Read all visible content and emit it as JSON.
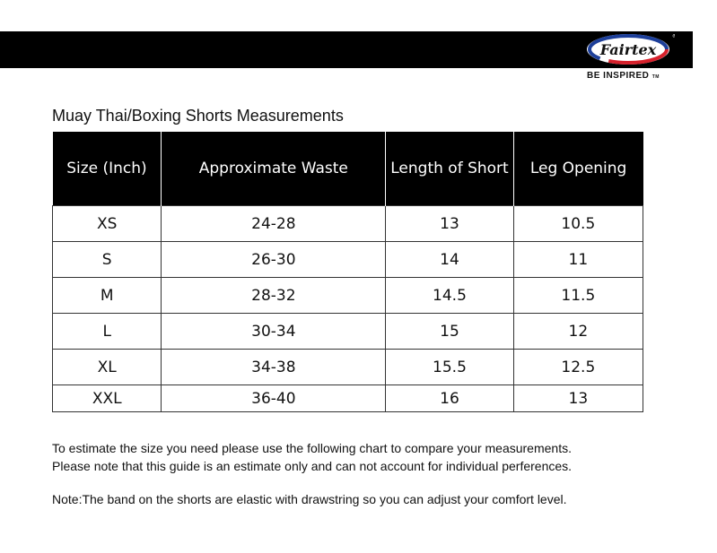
{
  "brand": {
    "logo_text": "Fairtex",
    "tagline": "BE INSPIRED",
    "trademark": "TM",
    "colors": {
      "red": "#d6202b",
      "blue": "#1d3f9a",
      "bar": "#000000"
    }
  },
  "title": "Muay Thai/Boxing Shorts Measurements",
  "table": {
    "headers": [
      "Size (Inch)",
      "Approximate Waste",
      "Length of Short",
      "Leg Opening"
    ],
    "rows": [
      [
        "XS",
        "24-28",
        "13",
        "10.5"
      ],
      [
        "S",
        "26-30",
        "14",
        "11"
      ],
      [
        "M",
        "28-32",
        "14.5",
        "11.5"
      ],
      [
        "L",
        "30-34",
        "15",
        "12"
      ],
      [
        "XL",
        "34-38",
        "15.5",
        "12.5"
      ],
      [
        "XXL",
        "36-40",
        "16",
        "13"
      ]
    ]
  },
  "notes": [
    "To estimate the size you need please use the following chart to compare your measurements.",
    "Please note that this guide is an estimate only and can not account for individual perferences.",
    "Note:The band on the shorts are elastic with drawstring so you can adjust your comfort level."
  ]
}
